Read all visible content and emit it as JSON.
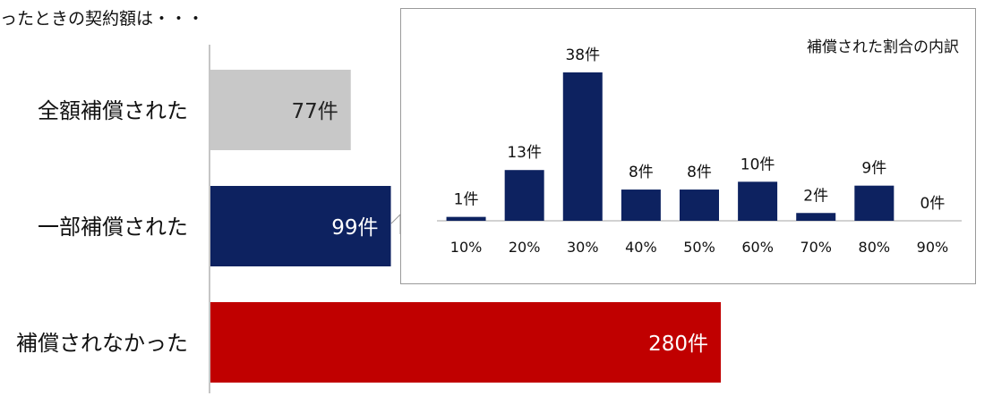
{
  "header": {
    "title": "ったときの契約額は・・・"
  },
  "chart_data": [
    {
      "type": "bar",
      "orientation": "horizontal",
      "title": "",
      "categories": [
        "全額補償された",
        "一部補償された",
        "補償されなかった"
      ],
      "values": [
        77,
        99,
        280
      ],
      "labels": [
        "77件",
        "99件",
        "280件"
      ],
      "colors": [
        "#c8c8c8",
        "#0d2260",
        "#c00000"
      ],
      "label_colors": [
        "#222222",
        "#ffffff",
        "#ffffff"
      ],
      "xlim": [
        0,
        400
      ],
      "grid": false
    },
    {
      "type": "bar",
      "title": "補償された割合の内訳",
      "categories": [
        "10%",
        "20%",
        "30%",
        "40%",
        "50%",
        "60%",
        "70%",
        "80%",
        "90%"
      ],
      "values": [
        1,
        13,
        38,
        8,
        8,
        10,
        2,
        9,
        0
      ],
      "labels": [
        "1件",
        "13件",
        "38件",
        "8件",
        "8件",
        "10件",
        "2件",
        "9件",
        "0件"
      ],
      "color": "#0d2260",
      "ylim": [
        0,
        40
      ],
      "grid": false
    }
  ]
}
